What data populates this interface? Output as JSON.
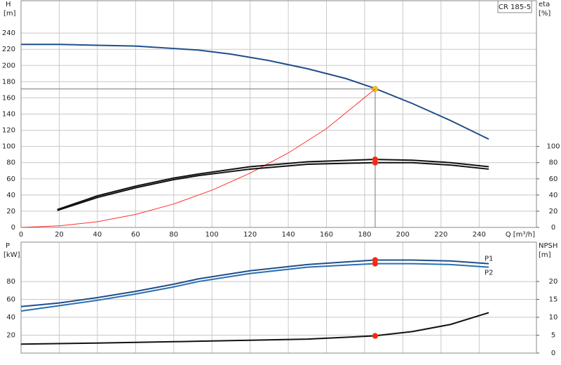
{
  "chart_data": [
    {
      "type": "line",
      "ylabel": "H",
      "yunit": "[m]",
      "y2label": "eta",
      "y2unit": "[%]",
      "xlabel": "Q [m³/h]",
      "model": "CR 185-5",
      "xlim": [
        0,
        270
      ],
      "xticks": [
        0,
        20,
        40,
        60,
        80,
        100,
        120,
        140,
        160,
        180,
        200,
        220,
        240
      ],
      "xtick_labels": true,
      "ylim": [
        0,
        280
      ],
      "yticks": [
        0,
        20,
        40,
        60,
        80,
        100,
        120,
        140,
        160,
        180,
        200,
        220,
        240
      ],
      "y2lim": [
        0,
        280
      ],
      "y2ticks": [
        0,
        20,
        40,
        60,
        80,
        100
      ],
      "grid": true,
      "crosshair": {
        "x": 185.5,
        "y": 171
      },
      "series": [
        {
          "color": "#1f4e8c",
          "x": [
            0,
            20,
            40,
            60,
            80,
            93,
            110,
            130,
            150,
            170,
            185,
            205,
            225,
            245
          ],
          "values": [
            226,
            226,
            225,
            224,
            221,
            219,
            214,
            206,
            196,
            184,
            172,
            153,
            132,
            109
          ],
          "point": {
            "x": 185.5,
            "y": 171,
            "color": "#f5c400"
          }
        },
        {
          "color": "#ff3030",
          "x": [
            0,
            20,
            40,
            60,
            80,
            100,
            120,
            140,
            160,
            185.5
          ],
          "values": [
            0,
            2,
            7,
            16,
            29,
            46,
            67,
            92,
            122,
            171
          ]
        },
        {
          "color": "#111111",
          "axis": "y2",
          "x": [
            19,
            40,
            60,
            80,
            93,
            120,
            150,
            185,
            205,
            225,
            245
          ],
          "values": [
            22,
            39,
            51,
            61,
            66,
            75,
            81,
            84,
            83,
            80,
            75
          ],
          "point": {
            "x": 185.5,
            "y": 84,
            "color": "#ff2020"
          }
        },
        {
          "color": "#111111",
          "axis": "y2",
          "x": [
            19,
            40,
            60,
            80,
            93,
            120,
            150,
            185,
            205,
            225,
            245
          ],
          "values": [
            21,
            37,
            49,
            59,
            64,
            72,
            78,
            80,
            80,
            77,
            72
          ],
          "point": {
            "x": 185.5,
            "y": 80,
            "color": "#ff2020"
          }
        }
      ]
    },
    {
      "type": "line",
      "ylabel": "P",
      "yunit": "[kW]",
      "y2label": "NPSH",
      "y2unit": "[m]",
      "xlim": [
        0,
        270
      ],
      "xticks": [
        0,
        20,
        40,
        60,
        80,
        100,
        120,
        140,
        160,
        180,
        200,
        220,
        240
      ],
      "xtick_labels": false,
      "ylim": [
        0,
        124
      ],
      "yticks": [
        20,
        40,
        60,
        80
      ],
      "y2lim": [
        0,
        31
      ],
      "y2ticks": [
        0,
        5,
        10,
        15,
        20
      ],
      "grid": true,
      "series": [
        {
          "name": "P1",
          "color": "#1f4e8c",
          "x": [
            0,
            20,
            40,
            60,
            80,
            93,
            120,
            150,
            185,
            205,
            225,
            245
          ],
          "values": [
            52,
            56,
            62,
            69,
            77,
            83,
            92,
            99,
            104,
            104,
            103,
            100
          ],
          "point": {
            "x": 185.5,
            "y": 104,
            "color": "#ff2020"
          }
        },
        {
          "name": "P2",
          "color": "#2a6fb0",
          "x": [
            0,
            20,
            40,
            60,
            80,
            93,
            120,
            150,
            185,
            205,
            225,
            245
          ],
          "values": [
            47,
            53,
            59,
            66,
            74,
            80,
            89,
            96,
            100,
            100,
            99,
            96
          ],
          "point": {
            "x": 185.5,
            "y": 100,
            "color": "#ff2020"
          }
        },
        {
          "color": "#111111",
          "axis": "y2",
          "x": [
            0,
            40,
            93,
            150,
            185,
            205,
            225,
            245
          ],
          "values": [
            2.5,
            2.8,
            3.3,
            3.9,
            4.8,
            6,
            8,
            11.3
          ],
          "point": {
            "x": 185.5,
            "y": 4.8,
            "color": "#ff2020"
          }
        }
      ]
    }
  ]
}
